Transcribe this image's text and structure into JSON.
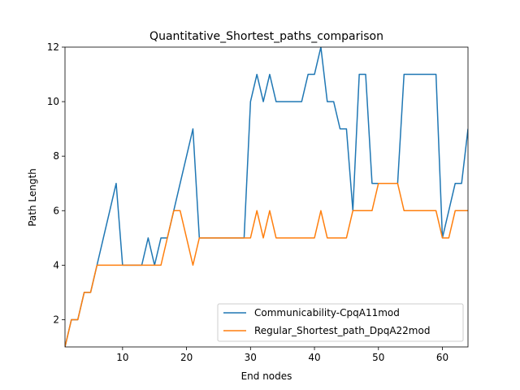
{
  "chart_data": {
    "type": "line",
    "title": "Quantitative_Shortest_paths_comparison",
    "xlabel": "End nodes",
    "ylabel": "Path Length",
    "xlim": [
      1,
      64
    ],
    "ylim": [
      1,
      12
    ],
    "xticks": [
      10,
      20,
      30,
      40,
      50,
      60
    ],
    "yticks": [
      2,
      4,
      6,
      8,
      10,
      12
    ],
    "grid": false,
    "legend_position": "lower-right",
    "x": [
      1,
      2,
      3,
      4,
      5,
      6,
      7,
      8,
      9,
      10,
      11,
      12,
      13,
      14,
      15,
      16,
      17,
      18,
      19,
      20,
      21,
      22,
      23,
      24,
      25,
      26,
      27,
      28,
      29,
      30,
      31,
      32,
      33,
      34,
      35,
      36,
      37,
      38,
      39,
      40,
      41,
      42,
      43,
      44,
      45,
      46,
      47,
      48,
      49,
      50,
      51,
      52,
      53,
      54,
      55,
      56,
      57,
      58,
      59,
      60,
      61,
      62,
      63,
      64
    ],
    "series": [
      {
        "name": "Communicability-CpqA11mod",
        "color": "#1f77b4",
        "values": [
          1,
          2,
          2,
          3,
          3,
          4,
          5,
          6,
          7,
          4,
          4,
          4,
          4,
          5,
          4,
          5,
          5,
          6,
          7,
          8,
          9,
          5,
          5,
          5,
          5,
          5,
          5,
          5,
          5,
          10,
          11,
          10,
          11,
          10,
          10,
          10,
          10,
          10,
          11,
          11,
          12,
          10,
          10,
          9,
          9,
          6,
          11,
          11,
          7,
          7,
          7,
          7,
          7,
          11,
          11,
          11,
          11,
          11,
          11,
          5,
          6,
          7,
          7,
          9
        ]
      },
      {
        "name": "Regular_Shortest_path_DpqA22mod",
        "color": "#ff7f0e",
        "values": [
          1,
          2,
          2,
          3,
          3,
          4,
          4,
          4,
          4,
          4,
          4,
          4,
          4,
          4,
          4,
          4,
          5,
          6,
          6,
          5,
          4,
          5,
          5,
          5,
          5,
          5,
          5,
          5,
          5,
          5,
          6,
          5,
          6,
          5,
          5,
          5,
          5,
          5,
          5,
          5,
          6,
          5,
          5,
          5,
          5,
          6,
          6,
          6,
          6,
          7,
          7,
          7,
          7,
          6,
          6,
          6,
          6,
          6,
          6,
          5,
          5,
          6,
          6,
          6
        ]
      }
    ]
  }
}
